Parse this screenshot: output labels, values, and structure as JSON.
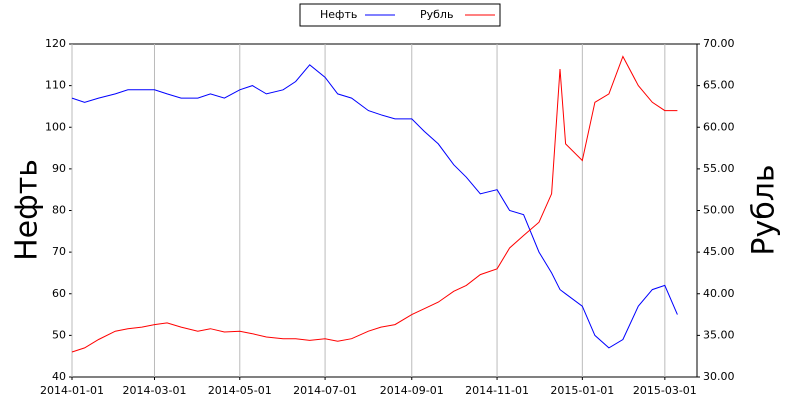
{
  "chart_data": {
    "type": "line",
    "x": [
      "2014-01-01",
      "2014-01-10",
      "2014-01-20",
      "2014-02-01",
      "2014-02-10",
      "2014-02-20",
      "2014-03-01",
      "2014-03-10",
      "2014-03-20",
      "2014-04-01",
      "2014-04-10",
      "2014-04-20",
      "2014-05-01",
      "2014-05-10",
      "2014-05-20",
      "2014-06-01",
      "2014-06-10",
      "2014-06-20",
      "2014-07-01",
      "2014-07-10",
      "2014-07-20",
      "2014-08-01",
      "2014-08-10",
      "2014-08-20",
      "2014-09-01",
      "2014-09-10",
      "2014-09-20",
      "2014-10-01",
      "2014-10-10",
      "2014-10-20",
      "2014-11-01",
      "2014-11-10",
      "2014-11-20",
      "2014-12-01",
      "2014-12-10",
      "2014-12-16",
      "2014-12-20",
      "2015-01-01",
      "2015-01-10",
      "2015-01-20",
      "2015-01-30",
      "2015-02-10",
      "2015-02-20",
      "2015-03-01",
      "2015-03-10"
    ],
    "series": [
      {
        "name": "Нефть",
        "color": "#0000ff",
        "values": [
          107,
          106,
          107,
          108,
          109,
          109,
          109,
          108,
          107,
          107,
          108,
          107,
          109,
          110,
          108,
          109,
          111,
          115,
          112,
          108,
          107,
          104,
          103,
          102,
          102,
          99,
          96,
          91,
          88,
          84,
          85,
          80,
          79,
          70,
          65,
          61,
          60,
          57,
          50,
          47,
          49,
          57,
          61,
          62,
          55
        ]
      },
      {
        "name": "Рубль",
        "color": "#ff0000",
        "axis": "y2",
        "values": [
          33,
          33.5,
          34.5,
          35.5,
          35.8,
          36,
          36.3,
          36.5,
          36,
          35.5,
          35.8,
          35.4,
          35.5,
          35.2,
          34.8,
          34.6,
          34.6,
          34.4,
          34.6,
          34.3,
          34.6,
          35.5,
          36,
          36.3,
          37.5,
          38.2,
          39,
          40.3,
          41,
          42.3,
          43,
          45.5,
          47,
          48.6,
          52,
          67,
          58,
          56,
          63,
          64,
          68.5,
          65,
          63,
          62,
          62
        ]
      }
    ],
    "y_label": "Нефть",
    "y2_label": "Рубль",
    "xlim": [
      "2014-01-01",
      "2015-03-24"
    ],
    "xticks": [
      "2014-01-01",
      "2014-03-01",
      "2014-05-01",
      "2014-07-01",
      "2014-09-01",
      "2014-11-01",
      "2015-01-01",
      "2015-03-01"
    ],
    "ylim": [
      40,
      120
    ],
    "yticks": [
      40,
      50,
      60,
      70,
      80,
      90,
      100,
      110,
      120
    ],
    "y2lim": [
      30,
      70
    ],
    "y2ticks": [
      {
        "value": 30,
        "label": "30.00"
      },
      {
        "value": 35,
        "label": "35.00"
      },
      {
        "value": 40,
        "label": "40.00"
      },
      {
        "value": 45,
        "label": "45.00"
      },
      {
        "value": 50,
        "label": "50.00"
      },
      {
        "value": 55,
        "label": "55.00"
      },
      {
        "value": 60,
        "label": "60.00"
      },
      {
        "value": 65,
        "label": "65.00"
      },
      {
        "value": 70,
        "label": "70.00"
      }
    ],
    "grid": "x",
    "legend": "top"
  }
}
